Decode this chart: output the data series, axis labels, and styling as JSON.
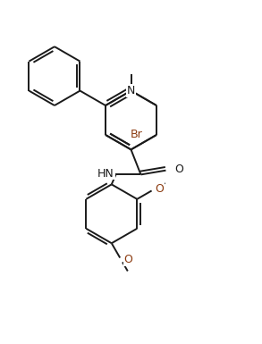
{
  "bg_color": "#ffffff",
  "bond_color": "#1a1a1a",
  "label_color": "#1a1a1a",
  "br_color": "#8B3A0F",
  "o_color": "#8B3A0F",
  "lw": 1.4,
  "figsize": [
    2.93,
    3.85
  ],
  "dpi": 100,
  "xlim": [
    0,
    9.3
  ],
  "ylim": [
    0,
    12.2
  ]
}
